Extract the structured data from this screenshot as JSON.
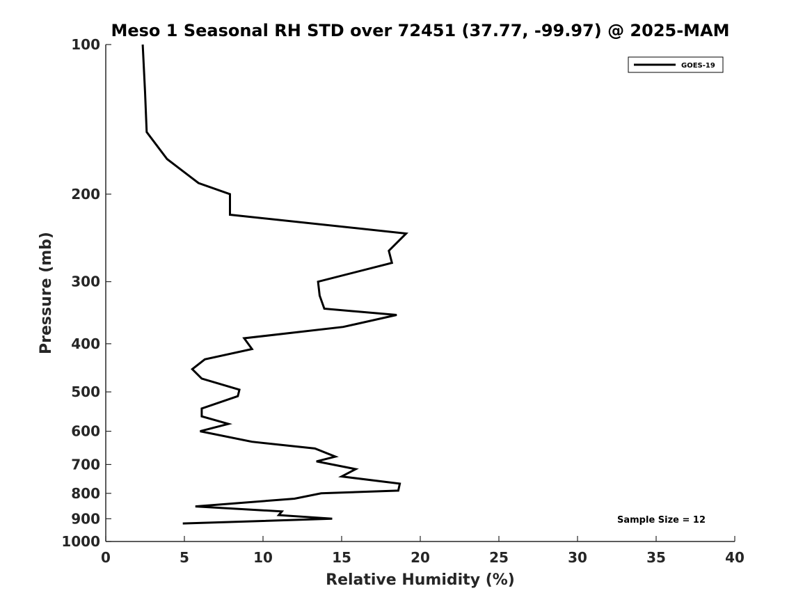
{
  "chart_data": {
    "type": "line",
    "title": "Meso 1 Seasonal RH STD over 72451 (37.77, -99.97) @ 2025-MAM",
    "xlabel": "Relative Humidity (%)",
    "ylabel": "Pressure (mb)",
    "xlim": [
      0,
      40
    ],
    "ylim": [
      100,
      1000
    ],
    "yscale": "log",
    "y_reversed": true,
    "x_ticks": [
      0,
      5,
      10,
      15,
      20,
      25,
      30,
      35,
      40
    ],
    "x_tick_labels": [
      "0",
      "5",
      "10",
      "15",
      "20",
      "25",
      "30",
      "35",
      "40"
    ],
    "y_ticks": [
      100,
      200,
      300,
      400,
      500,
      600,
      700,
      800,
      900,
      1000
    ],
    "y_tick_labels": [
      "100",
      "200",
      "300",
      "400",
      "500",
      "600",
      "700",
      "800",
      "900",
      "1000"
    ],
    "grid": false,
    "legend_position": "top-right",
    "annotation": "Sample Size = 12",
    "series": [
      {
        "name": "GOES-19",
        "color": "#000000",
        "x": [
          2.35,
          2.5,
          2.6,
          3.9,
          5.9,
          7.9,
          7.9,
          19.1,
          18.0,
          18.2,
          13.5,
          13.6,
          13.9,
          18.5,
          15.1,
          8.8,
          9.3,
          6.3,
          5.5,
          6.1,
          8.5,
          8.4,
          6.1,
          6.1,
          7.8,
          6.0,
          9.3,
          13.3,
          14.6,
          13.4,
          15.9,
          15.0,
          18.7,
          18.6,
          13.7,
          12.0,
          5.7,
          11.2,
          11.0,
          14.4,
          4.9
        ],
        "y": [
          100,
          125,
          150,
          170,
          190,
          200,
          220,
          240,
          260,
          275,
          300,
          320,
          340,
          350,
          370,
          390,
          410,
          430,
          450,
          470,
          495,
          510,
          540,
          560,
          580,
          600,
          630,
          650,
          675,
          690,
          715,
          740,
          765,
          790,
          800,
          820,
          850,
          870,
          885,
          900,
          920
        ]
      }
    ]
  }
}
